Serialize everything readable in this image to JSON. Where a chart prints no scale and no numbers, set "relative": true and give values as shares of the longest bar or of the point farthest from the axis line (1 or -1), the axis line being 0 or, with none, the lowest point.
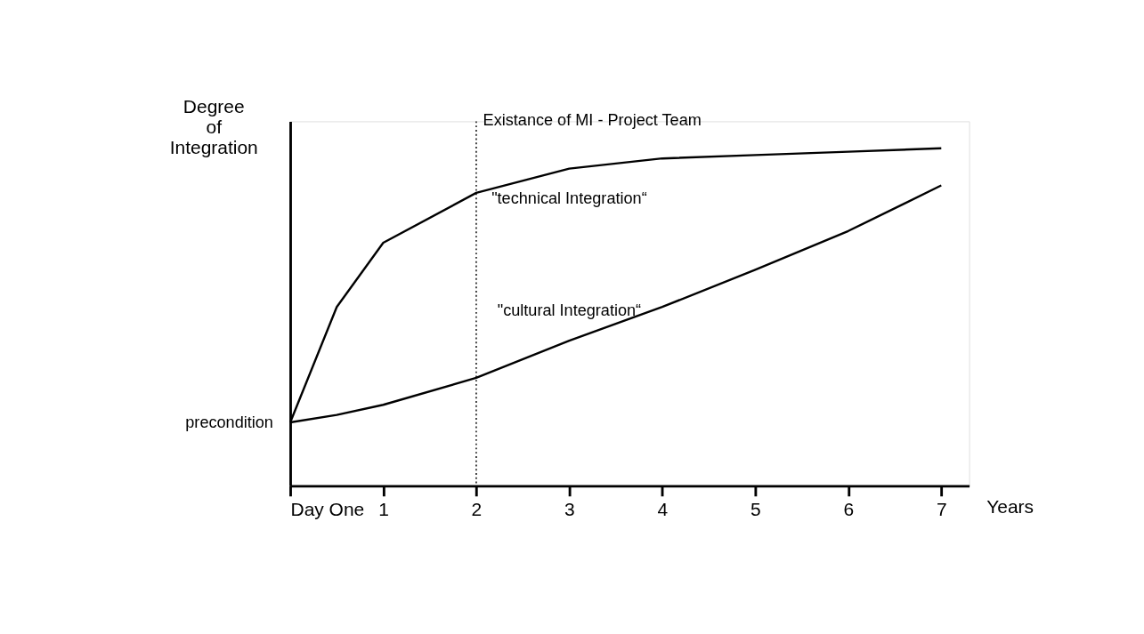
{
  "chart_data": {
    "type": "line",
    "relative": true,
    "xlabel": "Years",
    "ylabel": "Degree of Integration",
    "x": [
      0,
      0.5,
      1,
      2,
      3,
      4,
      5,
      6,
      7
    ],
    "xlim": [
      0,
      7.3
    ],
    "xticks": [
      {
        "value": 0,
        "label": "Day One"
      },
      1,
      2,
      3,
      4,
      5,
      6,
      7
    ],
    "series": [
      {
        "name": "\"technical Integration“",
        "color": "#000000",
        "values": [
          0.188,
          0.53,
          0.72,
          0.868,
          0.94,
          0.97,
          0.98,
          0.99,
          1
        ]
      },
      {
        "name": "\"cultural Integration“",
        "color": "#000000",
        "values": [
          0.188,
          0.21,
          0.24,
          0.32,
          0.43,
          0.53,
          0.64,
          0.755,
          0.89
        ]
      }
    ],
    "ref_lines": [
      {
        "axis": "x",
        "value": 2,
        "label": "Existance of MI - Project Team",
        "line_style": "dotted",
        "color": "#000000"
      }
    ],
    "annotations": [
      {
        "text": "precondition",
        "x": 0,
        "y": 0.188
      }
    ],
    "grid": false,
    "marker": "none",
    "line_style": "solid"
  }
}
